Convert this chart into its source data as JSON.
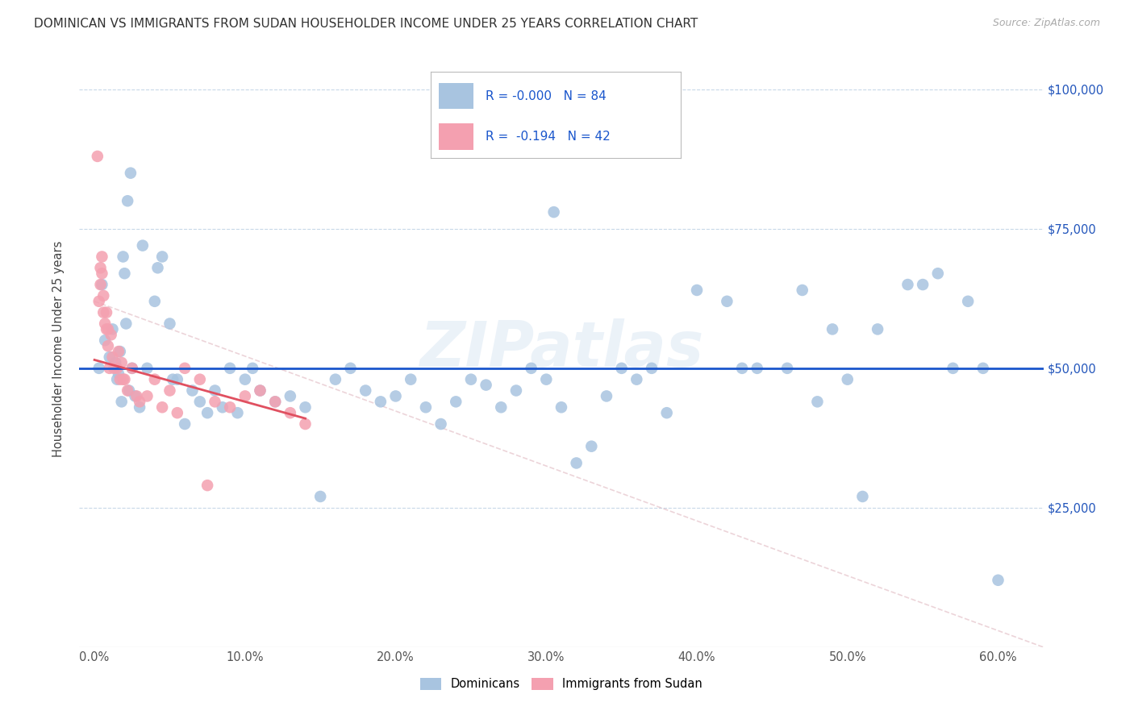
{
  "title": "DOMINICAN VS IMMIGRANTS FROM SUDAN HOUSEHOLDER INCOME UNDER 25 YEARS CORRELATION CHART",
  "source": "Source: ZipAtlas.com",
  "ylabel": "Householder Income Under 25 years",
  "xlabel_ticks": [
    "0.0%",
    "10.0%",
    "20.0%",
    "30.0%",
    "40.0%",
    "50.0%",
    "60.0%"
  ],
  "xlabel_vals": [
    0,
    10,
    20,
    30,
    40,
    50,
    60
  ],
  "ytick_labels": [
    "$100,000",
    "$75,000",
    "$50,000",
    "$25,000"
  ],
  "ytick_vals": [
    100000,
    75000,
    50000,
    25000
  ],
  "ymin": 0,
  "ymax": 107000,
  "xmin": -1,
  "xmax": 63,
  "legend_r_dominican": "-0.000",
  "legend_n_dominican": "84",
  "legend_r_sudan": "-0.194",
  "legend_n_sudan": "42",
  "color_dominican": "#a8c4e0",
  "color_sudan": "#f4a0b0",
  "color_dominican_line": "#1a56cc",
  "color_sudan_line": "#e05060",
  "color_diagonal": "#e0b8c0",
  "watermark": "ZIPatlas",
  "dominican_x": [
    0.3,
    0.5,
    0.7,
    1.0,
    1.2,
    1.4,
    1.5,
    1.6,
    1.7,
    1.8,
    2.0,
    2.1,
    2.3,
    2.5,
    2.7,
    3.0,
    3.5,
    4.0,
    4.5,
    5.0,
    5.5,
    6.0,
    6.5,
    7.0,
    7.5,
    8.0,
    9.0,
    10.0,
    11.0,
    12.0,
    13.0,
    14.0,
    15.0,
    16.0,
    17.0,
    18.0,
    19.0,
    20.0,
    21.0,
    22.0,
    23.0,
    24.0,
    25.0,
    26.0,
    27.0,
    28.0,
    29.0,
    30.0,
    31.0,
    32.0,
    33.0,
    34.0,
    35.0,
    36.0,
    37.0,
    38.0,
    40.0,
    42.0,
    43.0,
    44.0,
    46.0,
    47.0,
    48.0,
    49.0,
    50.0,
    51.0,
    52.0,
    54.0,
    55.0,
    56.0,
    57.0,
    58.0,
    59.0,
    60.0,
    30.5,
    2.2,
    2.4,
    1.9,
    3.2,
    4.2,
    5.2,
    8.5,
    9.5,
    10.5
  ],
  "dominican_y": [
    50000,
    65000,
    55000,
    52000,
    57000,
    51000,
    48000,
    49000,
    53000,
    44000,
    67000,
    58000,
    46000,
    50000,
    45000,
    43000,
    50000,
    62000,
    70000,
    58000,
    48000,
    40000,
    46000,
    44000,
    42000,
    46000,
    50000,
    48000,
    46000,
    44000,
    45000,
    43000,
    27000,
    48000,
    50000,
    46000,
    44000,
    45000,
    48000,
    43000,
    40000,
    44000,
    48000,
    47000,
    43000,
    46000,
    50000,
    48000,
    43000,
    33000,
    36000,
    45000,
    50000,
    48000,
    50000,
    42000,
    64000,
    62000,
    50000,
    50000,
    50000,
    64000,
    44000,
    57000,
    48000,
    27000,
    57000,
    65000,
    65000,
    67000,
    50000,
    62000,
    50000,
    12000,
    78000,
    80000,
    85000,
    70000,
    72000,
    68000,
    48000,
    43000,
    42000,
    50000
  ],
  "sudan_x": [
    0.2,
    0.3,
    0.4,
    0.5,
    0.6,
    0.7,
    0.8,
    0.9,
    1.0,
    1.1,
    1.2,
    1.3,
    1.5,
    1.6,
    1.7,
    1.9,
    2.0,
    2.2,
    2.5,
    2.8,
    3.0,
    3.5,
    4.0,
    4.5,
    5.0,
    5.5,
    6.0,
    7.0,
    8.0,
    9.0,
    10.0,
    11.0,
    12.0,
    13.0,
    14.0,
    0.4,
    0.5,
    0.6,
    0.8,
    0.9,
    1.8,
    7.5
  ],
  "sudan_y": [
    88000,
    62000,
    65000,
    67000,
    60000,
    58000,
    57000,
    54000,
    50000,
    56000,
    52000,
    50000,
    50000,
    53000,
    48000,
    48000,
    48000,
    46000,
    50000,
    45000,
    44000,
    45000,
    48000,
    43000,
    46000,
    42000,
    50000,
    48000,
    44000,
    43000,
    45000,
    46000,
    44000,
    42000,
    40000,
    68000,
    70000,
    63000,
    60000,
    57000,
    51000,
    29000
  ]
}
